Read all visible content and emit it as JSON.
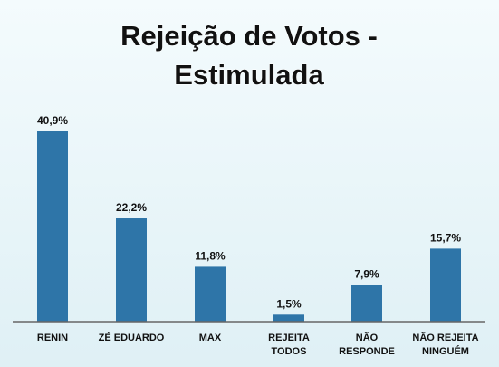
{
  "chart_data": {
    "type": "bar",
    "title_lines": [
      "Rejeição de Votos -",
      "Estimulada"
    ],
    "categories": [
      [
        "RENIN"
      ],
      [
        "ZÉ EDUARDO"
      ],
      [
        "MAX"
      ],
      [
        "REJEITA",
        "TODOS"
      ],
      [
        "NÃO",
        "RESPONDE"
      ],
      [
        "NÃO REJEITA",
        "NINGUÉM"
      ]
    ],
    "values": [
      40.9,
      22.2,
      11.8,
      1.5,
      7.9,
      15.7
    ],
    "value_labels": [
      "40,9%",
      "22,2%",
      "11,8%",
      "1,5%",
      "7,9%",
      "15,7%"
    ],
    "xlabel": "",
    "ylabel": "",
    "ylim": [
      0,
      40.9
    ],
    "grid": false,
    "legend": "none",
    "bar_color": "#2e75a8",
    "axis_color": "#666666"
  }
}
